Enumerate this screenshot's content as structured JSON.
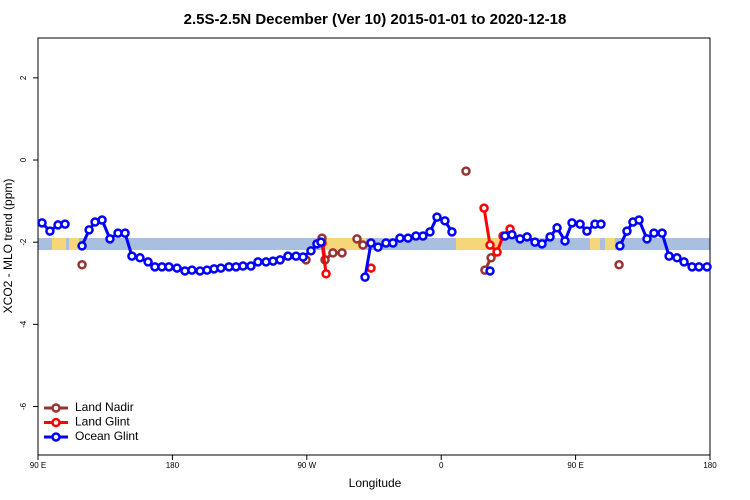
{
  "chart_data": {
    "type": "line",
    "title": "2.5S-2.5N December (Ver 10)   2015-01-01 to 2020-12-18",
    "x_label": "Longitude",
    "y_label": "XCO2 - MLO trend (ppm)",
    "xlim": [
      90,
      540
    ],
    "ylim": [
      -7.18,
      2.97
    ],
    "xticks": [
      {
        "value": 90,
        "label": "90 E"
      },
      {
        "value": 180,
        "label": "180"
      },
      {
        "value": 270,
        "label": "90 W"
      },
      {
        "value": 360,
        "label": "0"
      },
      {
        "value": 450,
        "label": "90 E"
      },
      {
        "value": 540,
        "label": "180"
      }
    ],
    "yticks": [
      -6,
      -4,
      -2,
      0,
      2
    ],
    "legend": "bottom-left",
    "series": [
      {
        "name": "Land Nadir",
        "color": "#993333",
        "x": [
          119.5,
          null,
          269.5,
          null,
          280.2,
          282.2,
          287.5,
          293.6,
          null,
          303.6,
          307.6,
          null,
          376.6,
          null,
          389.3,
          393.4,
          null,
          479.1
        ],
        "values": [
          -2.55,
          null,
          -2.43,
          null,
          -1.9,
          -2.43,
          -2.26,
          -2.26,
          null,
          -1.92,
          -2.07,
          null,
          -0.27,
          null,
          -2.68,
          -2.38,
          null,
          -2.55
        ]
      },
      {
        "name": "Land Glint",
        "color": "#ff0000",
        "x": [
          280.2,
          282.9,
          null,
          313.0,
          null,
          388.7,
          392.7,
          397.4,
          401.4,
          406.1
        ],
        "values": [
          -2.02,
          -2.77,
          null,
          -2.63,
          null,
          -1.17,
          -2.07,
          -2.24,
          -1.85,
          -1.68
        ]
      },
      {
        "name": "Ocean Glint",
        "color": "#0000ff",
        "x": [
          92.7,
          98.0,
          103.4,
          108.1,
          null,
          119.5,
          124.2,
          128.2,
          132.9,
          138.2,
          143.6,
          148.3,
          152.9,
          158.3,
          163.7,
          168.3,
          173.0,
          177.7,
          183.1,
          188.4,
          193.1,
          198.5,
          203.2,
          207.9,
          212.5,
          217.9,
          222.6,
          227.3,
          232.6,
          237.3,
          242.7,
          247.4,
          252.1,
          257.4,
          262.8,
          267.5,
          272.8,
          276.8,
          279.5,
          null,
          309.0,
          313.0,
          317.7,
          323.0,
          327.7,
          332.4,
          337.8,
          343.1,
          347.8,
          352.5,
          357.2,
          362.5,
          367.2,
          null,
          392.7,
          null,
          402.7,
          407.4,
          412.8,
          417.5,
          422.8,
          427.5,
          432.9,
          437.6,
          442.9,
          447.6,
          453.0,
          457.6,
          463.0,
          467.0,
          null,
          479.7,
          484.4,
          488.4,
          492.5,
          497.8,
          502.5,
          507.9,
          512.6,
          517.9,
          522.6,
          528.0,
          532.6,
          538.0
        ],
        "values": [
          -1.53,
          -1.73,
          -1.58,
          -1.56,
          null,
          -2.09,
          -1.7,
          -1.51,
          -1.46,
          -1.92,
          -1.78,
          -1.78,
          -2.34,
          -2.38,
          -2.48,
          -2.6,
          -2.6,
          -2.6,
          -2.63,
          -2.7,
          -2.68,
          -2.7,
          -2.68,
          -2.65,
          -2.63,
          -2.6,
          -2.6,
          -2.58,
          -2.58,
          -2.48,
          -2.48,
          -2.46,
          -2.43,
          -2.34,
          -2.34,
          -2.36,
          -2.21,
          -2.04,
          -2.0,
          null,
          -2.85,
          -2.02,
          -2.12,
          -2.02,
          -2.02,
          -1.9,
          -1.9,
          -1.85,
          -1.85,
          -1.75,
          -1.39,
          -1.48,
          -1.75,
          null,
          -2.7,
          null,
          -1.85,
          -1.82,
          -1.92,
          -1.87,
          -2.0,
          -2.04,
          -1.87,
          -1.65,
          -1.97,
          -1.53,
          -1.56,
          -1.73,
          -1.56,
          -1.56,
          null,
          -2.09,
          -1.73,
          -1.51,
          -1.46,
          -1.92,
          -1.78,
          -1.78,
          -2.34,
          -2.38,
          -2.48,
          -2.6,
          -2.6,
          -2.6
        ]
      }
    ]
  }
}
